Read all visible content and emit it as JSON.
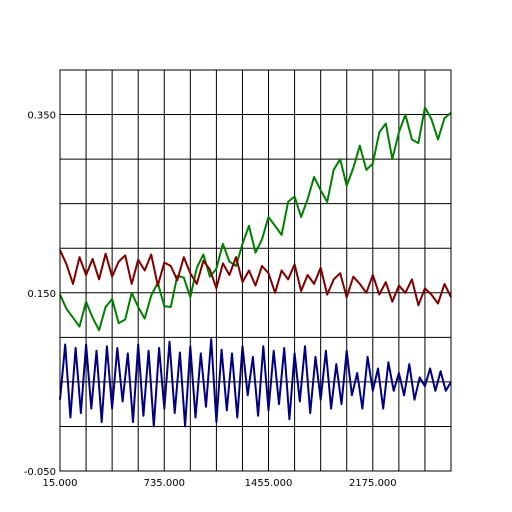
{
  "chart_data": {
    "type": "line",
    "title": "",
    "xlabel": "",
    "ylabel": "",
    "xlim": [
      15,
      2715
    ],
    "ylim": [
      -0.05,
      0.4
    ],
    "grid": true,
    "legend": "none",
    "x_tick_labels": [
      "15.000",
      "735.000",
      "1455.000",
      "2175.000"
    ],
    "x_tick_values": [
      15,
      735,
      1455,
      2175
    ],
    "x_grid_values": [
      15,
      195,
      375,
      555,
      735,
      915,
      1095,
      1275,
      1455,
      1635,
      1815,
      1995,
      2175,
      2355,
      2535,
      2715
    ],
    "y_tick_labels": [
      "-0.050",
      "0.150",
      "0.350"
    ],
    "y_tick_values": [
      -0.05,
      0.15,
      0.35
    ],
    "y_grid_values": [
      -0.05,
      0.0,
      0.05,
      0.1,
      0.15,
      0.2,
      0.25,
      0.3,
      0.35,
      0.4
    ],
    "series": [
      {
        "color": "#008000",
        "x": [
          15,
          60,
          105,
          150,
          195,
          240,
          285,
          330,
          375,
          420,
          465,
          510,
          555,
          600,
          645,
          690,
          735,
          780,
          825,
          870,
          915,
          960,
          1005,
          1050,
          1095,
          1140,
          1185,
          1230,
          1275,
          1320,
          1365,
          1410,
          1455,
          1500,
          1545,
          1590,
          1635,
          1680,
          1725,
          1770,
          1815,
          1860,
          1905,
          1950,
          1995,
          2040,
          2085,
          2130,
          2175,
          2220,
          2265,
          2310,
          2355,
          2400,
          2445,
          2490,
          2535,
          2580,
          2625,
          2670,
          2715
        ],
        "y": [
          0.148,
          0.132,
          0.122,
          0.112,
          0.14,
          0.122,
          0.108,
          0.134,
          0.143,
          0.116,
          0.12,
          0.15,
          0.134,
          0.121,
          0.147,
          0.161,
          0.135,
          0.134,
          0.169,
          0.167,
          0.145,
          0.178,
          0.193,
          0.168,
          0.177,
          0.205,
          0.185,
          0.18,
          0.205,
          0.225,
          0.195,
          0.21,
          0.235,
          0.225,
          0.215,
          0.252,
          0.258,
          0.235,
          0.255,
          0.28,
          0.265,
          0.252,
          0.288,
          0.3,
          0.27,
          0.29,
          0.315,
          0.288,
          0.295,
          0.33,
          0.34,
          0.3,
          0.33,
          0.35,
          0.322,
          0.318,
          0.358,
          0.345,
          0.322,
          0.346,
          0.352
        ]
      },
      {
        "color": "#800000",
        "x": [
          15,
          60,
          105,
          150,
          195,
          240,
          285,
          330,
          375,
          420,
          465,
          510,
          555,
          600,
          645,
          690,
          735,
          780,
          825,
          870,
          915,
          960,
          1005,
          1050,
          1095,
          1140,
          1185,
          1230,
          1275,
          1320,
          1365,
          1410,
          1455,
          1500,
          1545,
          1590,
          1635,
          1680,
          1725,
          1770,
          1815,
          1860,
          1905,
          1950,
          1995,
          2040,
          2085,
          2130,
          2175,
          2220,
          2265,
          2310,
          2355,
          2400,
          2445,
          2490,
          2535,
          2580,
          2625,
          2670,
          2715
        ],
        "y": [
          0.198,
          0.182,
          0.16,
          0.19,
          0.17,
          0.188,
          0.165,
          0.194,
          0.168,
          0.185,
          0.192,
          0.16,
          0.187,
          0.175,
          0.193,
          0.158,
          0.184,
          0.18,
          0.164,
          0.19,
          0.172,
          0.16,
          0.186,
          0.176,
          0.155,
          0.183,
          0.17,
          0.19,
          0.162,
          0.175,
          0.158,
          0.18,
          0.172,
          0.15,
          0.175,
          0.165,
          0.182,
          0.152,
          0.17,
          0.16,
          0.178,
          0.148,
          0.165,
          0.172,
          0.145,
          0.168,
          0.16,
          0.15,
          0.17,
          0.148,
          0.162,
          0.14,
          0.158,
          0.15,
          0.165,
          0.136,
          0.155,
          0.148,
          0.138,
          0.16,
          0.145
        ]
      },
      {
        "color": "#000080",
        "x": [
          15,
          51,
          87,
          123,
          159,
          195,
          231,
          267,
          303,
          339,
          375,
          411,
          447,
          483,
          519,
          555,
          591,
          627,
          663,
          699,
          735,
          771,
          807,
          843,
          879,
          915,
          951,
          987,
          1023,
          1059,
          1095,
          1131,
          1167,
          1203,
          1239,
          1275,
          1311,
          1347,
          1383,
          1419,
          1455,
          1491,
          1527,
          1563,
          1599,
          1635,
          1671,
          1707,
          1743,
          1779,
          1815,
          1851,
          1887,
          1923,
          1959,
          1995,
          2031,
          2067,
          2103,
          2139,
          2175,
          2211,
          2247,
          2283,
          2319,
          2355,
          2391,
          2427,
          2463,
          2499,
          2535,
          2571,
          2607,
          2643,
          2679,
          2715
        ],
        "y": [
          0.03,
          0.092,
          0.01,
          0.088,
          0.015,
          0.092,
          0.02,
          0.085,
          0.005,
          0.09,
          0.02,
          0.088,
          0.028,
          0.082,
          0.005,
          0.092,
          0.012,
          0.085,
          0.0,
          0.088,
          0.02,
          0.095,
          0.015,
          0.083,
          0.0,
          0.09,
          0.01,
          0.082,
          0.022,
          0.098,
          0.005,
          0.086,
          0.018,
          0.082,
          0.01,
          0.09,
          0.035,
          0.078,
          0.012,
          0.09,
          0.018,
          0.085,
          0.025,
          0.088,
          0.008,
          0.082,
          0.028,
          0.09,
          0.015,
          0.078,
          0.03,
          0.085,
          0.02,
          0.07,
          0.025,
          0.085,
          0.035,
          0.06,
          0.02,
          0.078,
          0.04,
          0.065,
          0.02,
          0.072,
          0.04,
          0.06,
          0.035,
          0.07,
          0.03,
          0.055,
          0.045,
          0.065,
          0.04,
          0.062,
          0.04,
          0.05
        ]
      }
    ]
  }
}
